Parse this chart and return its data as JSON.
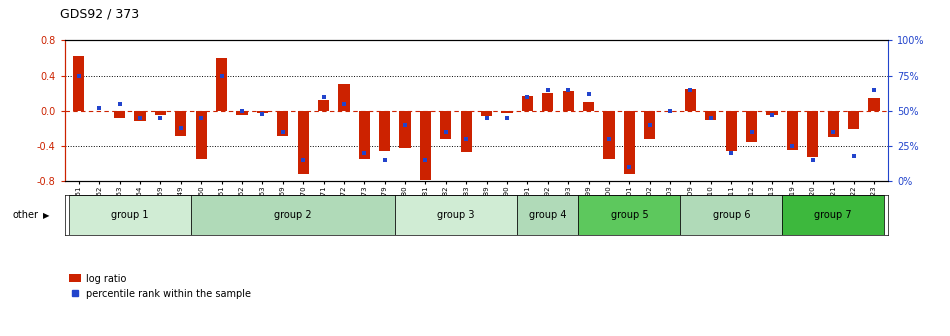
{
  "title": "GDS92 / 373",
  "samples": [
    "GSM1551",
    "GSM1552",
    "GSM1553",
    "GSM1554",
    "GSM1559",
    "GSM1549",
    "GSM1560",
    "GSM1561",
    "GSM1562",
    "GSM1563",
    "GSM1569",
    "GSM1570",
    "GSM1571",
    "GSM1572",
    "GSM1573",
    "GSM1579",
    "GSM1580",
    "GSM1581",
    "GSM1582",
    "GSM1583",
    "GSM1589",
    "GSM1590",
    "GSM1591",
    "GSM1592",
    "GSM1593",
    "GSM1599",
    "GSM1600",
    "GSM1601",
    "GSM1602",
    "GSM1603",
    "GSM1609",
    "GSM1610",
    "GSM1611",
    "GSM1612",
    "GSM1613",
    "GSM1619",
    "GSM1620",
    "GSM1621",
    "GSM1622",
    "GSM1623"
  ],
  "log_ratio": [
    0.62,
    0.0,
    -0.08,
    -0.12,
    -0.05,
    -0.28,
    -0.55,
    0.6,
    -0.05,
    -0.02,
    -0.28,
    -0.72,
    0.12,
    0.3,
    -0.54,
    -0.46,
    -0.42,
    -0.78,
    -0.32,
    -0.47,
    -0.06,
    -0.02,
    0.17,
    0.2,
    0.22,
    0.1,
    -0.55,
    -0.72,
    -0.32,
    0.0,
    0.25,
    -0.1,
    -0.45,
    -0.35,
    -0.05,
    -0.44,
    -0.52,
    -0.3,
    -0.2,
    0.15
  ],
  "percentile": [
    75,
    52,
    55,
    45,
    45,
    38,
    45,
    75,
    50,
    48,
    35,
    15,
    60,
    55,
    20,
    15,
    40,
    15,
    35,
    30,
    45,
    45,
    60,
    65,
    65,
    62,
    30,
    10,
    40,
    50,
    65,
    45,
    20,
    35,
    47,
    25,
    15,
    35,
    18,
    65
  ],
  "group_defs": [
    {
      "name": "group 1",
      "start": 0,
      "end": 5,
      "color": "#d0ecd4"
    },
    {
      "name": "group 2",
      "start": 6,
      "end": 15,
      "color": "#b0dab8"
    },
    {
      "name": "group 3",
      "start": 16,
      "end": 21,
      "color": "#d0ecd4"
    },
    {
      "name": "group 4",
      "start": 22,
      "end": 24,
      "color": "#b0dab8"
    },
    {
      "name": "group 5",
      "start": 25,
      "end": 29,
      "color": "#5dc85d"
    },
    {
      "name": "group 6",
      "start": 30,
      "end": 34,
      "color": "#b0dab8"
    },
    {
      "name": "group 7",
      "start": 35,
      "end": 39,
      "color": "#3db83d"
    }
  ],
  "ylim": [
    -0.8,
    0.8
  ],
  "yticks_left": [
    -0.8,
    -0.4,
    0.0,
    0.4,
    0.8
  ],
  "yticks_right": [
    0,
    25,
    50,
    75,
    100
  ],
  "bar_color": "#cc2200",
  "marker_color": "#2244cc",
  "bg_color": "#ffffff",
  "zero_line_color": "#cc2200"
}
